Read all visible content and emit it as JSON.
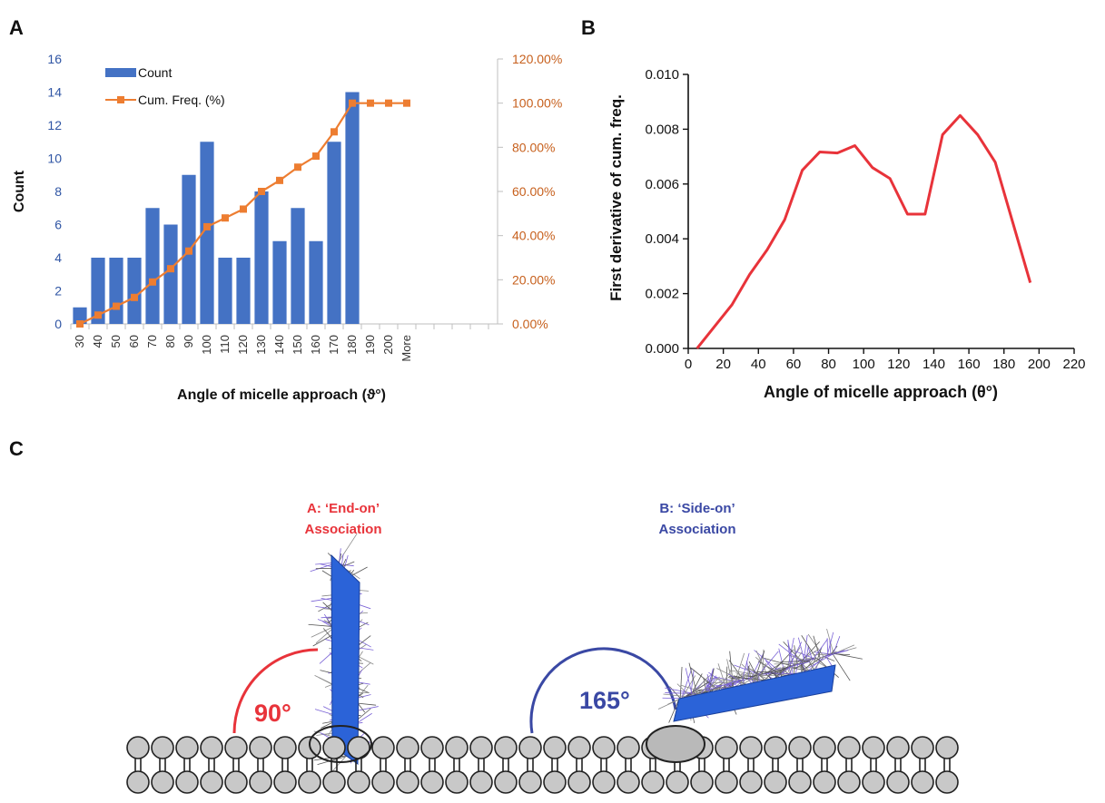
{
  "panels": {
    "a": "A",
    "b": "B",
    "c": "C"
  },
  "chart_data": [
    {
      "type": "bar",
      "panel": "A",
      "categories": [
        "30",
        "40",
        "50",
        "60",
        "70",
        "80",
        "90",
        "100",
        "110",
        "120",
        "130",
        "140",
        "150",
        "160",
        "170",
        "180",
        "190",
        "200",
        "More"
      ],
      "series": [
        {
          "name": "Count",
          "type": "bar",
          "axis": "left",
          "color": "#4472c4",
          "values": [
            1,
            4,
            4,
            4,
            7,
            6,
            9,
            11,
            4,
            4,
            8,
            5,
            7,
            5,
            11,
            14,
            0,
            0,
            0
          ]
        },
        {
          "name": "Cum. Freq. (%)",
          "type": "line",
          "axis": "right",
          "color": "#ed7d31",
          "values": [
            0,
            4,
            8,
            12,
            19,
            25,
            33,
            44,
            48,
            52,
            60,
            65,
            71,
            76,
            87,
            100,
            100,
            100,
            100
          ]
        }
      ],
      "xlabel": "Angle of micelle approach (ϑ°)",
      "ylabel": "Count",
      "ylim": [
        0,
        16
      ],
      "yticks": [
        "0",
        "2",
        "4",
        "6",
        "8",
        "10",
        "12",
        "14",
        "16"
      ],
      "y2lim": [
        0,
        120
      ],
      "y2ticks": [
        "0.00%",
        "20.00%",
        "40.00%",
        "60.00%",
        "80.00%",
        "100.00%",
        "120.00%"
      ],
      "legend": "top-left"
    },
    {
      "type": "line",
      "panel": "B",
      "x": [
        5,
        15,
        25,
        35,
        45,
        55,
        65,
        75,
        85,
        95,
        105,
        115,
        125,
        135,
        145,
        155,
        165,
        175,
        185,
        195
      ],
      "series": [
        {
          "color": "#e8333a",
          "values": [
            0.0,
            0.0008,
            0.0016,
            0.0027,
            0.0036,
            0.0047,
            0.0065,
            0.00717,
            0.00713,
            0.0074,
            0.0066,
            0.0062,
            0.0049,
            0.0049,
            0.0078,
            0.0085,
            0.0078,
            0.0068,
            0.0046,
            0.0024
          ]
        }
      ],
      "xlabel": "Angle of micelle approach (θ°)",
      "ylabel": "First derivative of cum. freq.",
      "xlim": [
        0,
        220
      ],
      "ylim": [
        0,
        0.01
      ],
      "xticks": [
        "0",
        "20",
        "40",
        "60",
        "80",
        "100",
        "120",
        "140",
        "160",
        "180",
        "200",
        "220"
      ],
      "yticks": [
        "0.000",
        "0.002",
        "0.004",
        "0.006",
        "0.008",
        "0.010"
      ]
    }
  ],
  "diagram": {
    "end_on": {
      "title": "A: ‘End-on’",
      "subtitle": "Association",
      "angle": "90°",
      "color": "#e8333a"
    },
    "side_on": {
      "title": "B: ‘Side-on’",
      "subtitle": "Association",
      "angle": "165°",
      "color": "#3a48a4"
    },
    "micelle_color": "#2b63d8",
    "corona_color": "#7a62d6",
    "lipid_color": "#c8c8c8"
  }
}
